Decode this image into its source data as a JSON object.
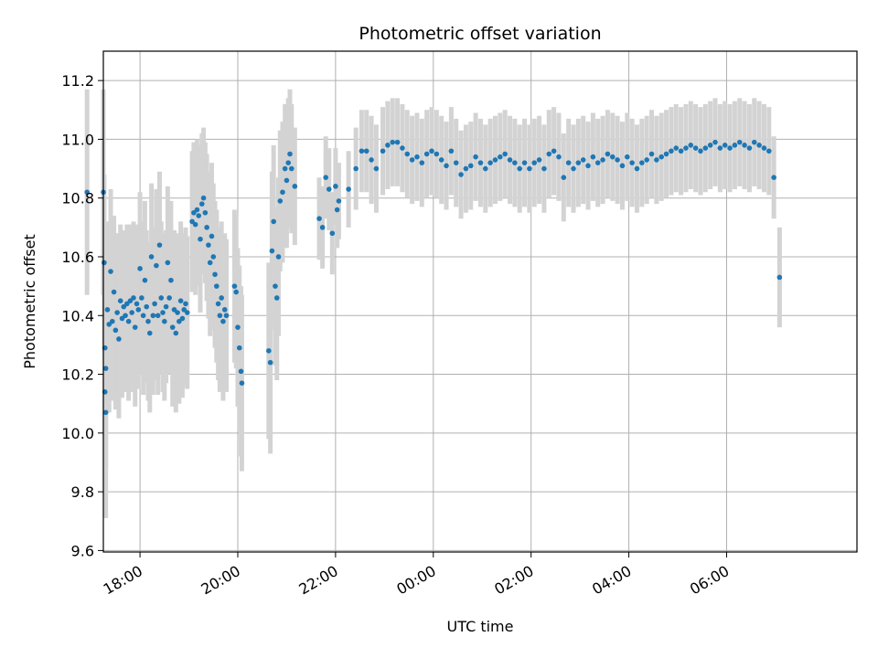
{
  "chart_data": {
    "type": "scatter",
    "title": "Photometric offset variation",
    "xlabel": "UTC time",
    "ylabel": "Photometric offset",
    "grid": true,
    "xlim": [
      "17:15",
      "08:40"
    ],
    "ylim": [
      9.595,
      11.3
    ],
    "x_ticks": [
      "18:00",
      "20:00",
      "22:00",
      "00:00",
      "02:00",
      "04:00",
      "06:00"
    ],
    "y_ticks": [
      "9.6",
      "9.8",
      "10.0",
      "10.2",
      "10.4",
      "10.6",
      "10.8",
      "11.0",
      "11.2"
    ],
    "series": [
      {
        "color": "#1f77b4",
        "errorbar_color": "#d3d3d3",
        "points": [
          [
            "16:55",
            10.82,
            0.35
          ],
          [
            "17:15",
            10.82,
            0.35
          ],
          [
            "17:16",
            10.58,
            0.3
          ],
          [
            "17:17",
            10.29,
            0.3
          ],
          [
            "17:17",
            10.14,
            0.35
          ],
          [
            "17:18",
            10.07,
            0.36
          ],
          [
            "17:18",
            10.22,
            0.34
          ],
          [
            "17:20",
            10.42,
            0.3
          ],
          [
            "17:22",
            10.37,
            0.3
          ],
          [
            "17:24",
            10.55,
            0.28
          ],
          [
            "17:26",
            10.38,
            0.27
          ],
          [
            "17:28",
            10.48,
            0.26
          ],
          [
            "17:30",
            10.35,
            0.27
          ],
          [
            "17:32",
            10.41,
            0.27
          ],
          [
            "17:34",
            10.32,
            0.27
          ],
          [
            "17:36",
            10.45,
            0.26
          ],
          [
            "17:38",
            10.39,
            0.27
          ],
          [
            "17:40",
            10.43,
            0.26
          ],
          [
            "17:42",
            10.4,
            0.26
          ],
          [
            "17:44",
            10.44,
            0.27
          ],
          [
            "17:46",
            10.38,
            0.27
          ],
          [
            "17:48",
            10.45,
            0.26
          ],
          [
            "17:50",
            10.41,
            0.27
          ],
          [
            "17:52",
            10.46,
            0.26
          ],
          [
            "17:54",
            10.36,
            0.27
          ],
          [
            "17:56",
            10.44,
            0.27
          ],
          [
            "17:58",
            10.42,
            0.27
          ],
          [
            "18:00",
            10.56,
            0.26
          ],
          [
            "18:02",
            10.46,
            0.26
          ],
          [
            "18:04",
            10.4,
            0.27
          ],
          [
            "18:06",
            10.52,
            0.27
          ],
          [
            "18:08",
            10.43,
            0.26
          ],
          [
            "18:10",
            10.38,
            0.27
          ],
          [
            "18:12",
            10.34,
            0.27
          ],
          [
            "18:14",
            10.6,
            0.25
          ],
          [
            "18:16",
            10.4,
            0.27
          ],
          [
            "18:18",
            10.44,
            0.26
          ],
          [
            "18:20",
            10.57,
            0.26
          ],
          [
            "18:22",
            10.4,
            0.27
          ],
          [
            "18:24",
            10.64,
            0.25
          ],
          [
            "18:26",
            10.46,
            0.26
          ],
          [
            "18:28",
            10.41,
            0.27
          ],
          [
            "18:30",
            10.38,
            0.27
          ],
          [
            "18:32",
            10.43,
            0.26
          ],
          [
            "18:34",
            10.58,
            0.26
          ],
          [
            "18:36",
            10.46,
            0.26
          ],
          [
            "18:38",
            10.52,
            0.27
          ],
          [
            "18:40",
            10.36,
            0.27
          ],
          [
            "18:42",
            10.42,
            0.27
          ],
          [
            "18:44",
            10.34,
            0.27
          ],
          [
            "18:46",
            10.41,
            0.27
          ],
          [
            "18:48",
            10.38,
            0.28
          ],
          [
            "18:50",
            10.45,
            0.27
          ],
          [
            "18:52",
            10.39,
            0.27
          ],
          [
            "18:54",
            10.42,
            0.26
          ],
          [
            "18:56",
            10.44,
            0.26
          ],
          [
            "18:58",
            10.41,
            0.26
          ],
          [
            "19:04",
            10.72,
            0.24
          ],
          [
            "19:06",
            10.75,
            0.24
          ],
          [
            "19:08",
            10.71,
            0.24
          ],
          [
            "19:10",
            10.76,
            0.24
          ],
          [
            "19:12",
            10.74,
            0.24
          ],
          [
            "19:14",
            10.66,
            0.25
          ],
          [
            "19:16",
            10.78,
            0.24
          ],
          [
            "19:18",
            10.8,
            0.24
          ],
          [
            "19:20",
            10.75,
            0.24
          ],
          [
            "19:22",
            10.7,
            0.25
          ],
          [
            "19:24",
            10.64,
            0.25
          ],
          [
            "19:26",
            10.58,
            0.25
          ],
          [
            "19:28",
            10.67,
            0.25
          ],
          [
            "19:30",
            10.6,
            0.25
          ],
          [
            "19:32",
            10.54,
            0.25
          ],
          [
            "19:34",
            10.5,
            0.26
          ],
          [
            "19:36",
            10.44,
            0.26
          ],
          [
            "19:38",
            10.4,
            0.26
          ],
          [
            "19:40",
            10.46,
            0.26
          ],
          [
            "19:42",
            10.38,
            0.27
          ],
          [
            "19:44",
            10.42,
            0.26
          ],
          [
            "19:46",
            10.4,
            0.26
          ],
          [
            "19:56",
            10.5,
            0.26
          ],
          [
            "19:58",
            10.48,
            0.26
          ],
          [
            "20:00",
            10.36,
            0.27
          ],
          [
            "20:02",
            10.29,
            0.28
          ],
          [
            "20:04",
            10.21,
            0.29
          ],
          [
            "20:05",
            10.17,
            0.3
          ],
          [
            "20:38",
            10.28,
            0.3
          ],
          [
            "20:40",
            10.24,
            0.31
          ],
          [
            "20:42",
            10.62,
            0.27
          ],
          [
            "20:44",
            10.72,
            0.26
          ],
          [
            "20:46",
            10.5,
            0.27
          ],
          [
            "20:48",
            10.46,
            0.28
          ],
          [
            "20:50",
            10.6,
            0.27
          ],
          [
            "20:52",
            10.79,
            0.24
          ],
          [
            "20:55",
            10.82,
            0.24
          ],
          [
            "20:58",
            10.9,
            0.22
          ],
          [
            "21:00",
            10.86,
            0.23
          ],
          [
            "21:02",
            10.92,
            0.22
          ],
          [
            "21:04",
            10.95,
            0.22
          ],
          [
            "21:06",
            10.9,
            0.22
          ],
          [
            "21:10",
            10.84,
            0.2
          ],
          [
            "21:40",
            10.73,
            0.14
          ],
          [
            "21:44",
            10.7,
            0.14
          ],
          [
            "21:48",
            10.87,
            0.14
          ],
          [
            "21:52",
            10.83,
            0.14
          ],
          [
            "21:56",
            10.68,
            0.14
          ],
          [
            "22:00",
            10.84,
            0.13
          ],
          [
            "22:02",
            10.76,
            0.13
          ],
          [
            "22:04",
            10.79,
            0.13
          ],
          [
            "22:16",
            10.83,
            0.13
          ],
          [
            "22:25",
            10.9,
            0.14
          ],
          [
            "22:32",
            10.96,
            0.14
          ],
          [
            "22:38",
            10.96,
            0.14
          ],
          [
            "22:44",
            10.93,
            0.15
          ],
          [
            "22:50",
            10.9,
            0.15
          ],
          [
            "22:58",
            10.96,
            0.15
          ],
          [
            "23:04",
            10.98,
            0.15
          ],
          [
            "23:10",
            10.99,
            0.15
          ],
          [
            "23:16",
            10.99,
            0.15
          ],
          [
            "23:22",
            10.97,
            0.15
          ],
          [
            "23:28",
            10.95,
            0.15
          ],
          [
            "23:34",
            10.93,
            0.15
          ],
          [
            "23:40",
            10.94,
            0.15
          ],
          [
            "23:46",
            10.92,
            0.15
          ],
          [
            "23:52",
            10.95,
            0.15
          ],
          [
            "23:58",
            10.96,
            0.15
          ],
          [
            "00:04",
            10.95,
            0.15
          ],
          [
            "00:10",
            10.93,
            0.15
          ],
          [
            "00:16",
            10.91,
            0.15
          ],
          [
            "00:22",
            10.96,
            0.15
          ],
          [
            "00:28",
            10.92,
            0.15
          ],
          [
            "00:34",
            10.88,
            0.15
          ],
          [
            "00:40",
            10.9,
            0.15
          ],
          [
            "00:46",
            10.91,
            0.15
          ],
          [
            "00:52",
            10.94,
            0.15
          ],
          [
            "00:58",
            10.92,
            0.15
          ],
          [
            "01:04",
            10.9,
            0.15
          ],
          [
            "01:10",
            10.92,
            0.15
          ],
          [
            "01:16",
            10.93,
            0.15
          ],
          [
            "01:22",
            10.94,
            0.15
          ],
          [
            "01:28",
            10.95,
            0.15
          ],
          [
            "01:34",
            10.93,
            0.15
          ],
          [
            "01:40",
            10.92,
            0.15
          ],
          [
            "01:46",
            10.9,
            0.15
          ],
          [
            "01:52",
            10.92,
            0.15
          ],
          [
            "01:58",
            10.9,
            0.15
          ],
          [
            "02:04",
            10.92,
            0.15
          ],
          [
            "02:10",
            10.93,
            0.15
          ],
          [
            "02:16",
            10.9,
            0.15
          ],
          [
            "02:22",
            10.95,
            0.15
          ],
          [
            "02:28",
            10.96,
            0.15
          ],
          [
            "02:34",
            10.94,
            0.15
          ],
          [
            "02:40",
            10.87,
            0.15
          ],
          [
            "02:46",
            10.92,
            0.15
          ],
          [
            "02:52",
            10.9,
            0.15
          ],
          [
            "02:58",
            10.92,
            0.15
          ],
          [
            "03:04",
            10.93,
            0.15
          ],
          [
            "03:10",
            10.91,
            0.15
          ],
          [
            "03:16",
            10.94,
            0.15
          ],
          [
            "03:22",
            10.92,
            0.15
          ],
          [
            "03:28",
            10.93,
            0.15
          ],
          [
            "03:34",
            10.95,
            0.15
          ],
          [
            "03:40",
            10.94,
            0.15
          ],
          [
            "03:46",
            10.93,
            0.15
          ],
          [
            "03:52",
            10.91,
            0.15
          ],
          [
            "03:58",
            10.94,
            0.15
          ],
          [
            "04:04",
            10.92,
            0.15
          ],
          [
            "04:10",
            10.9,
            0.15
          ],
          [
            "04:16",
            10.92,
            0.15
          ],
          [
            "04:22",
            10.93,
            0.15
          ],
          [
            "04:28",
            10.95,
            0.15
          ],
          [
            "04:34",
            10.93,
            0.15
          ],
          [
            "04:40",
            10.94,
            0.15
          ],
          [
            "04:46",
            10.95,
            0.15
          ],
          [
            "04:52",
            10.96,
            0.15
          ],
          [
            "04:58",
            10.97,
            0.15
          ],
          [
            "05:04",
            10.96,
            0.15
          ],
          [
            "05:10",
            10.97,
            0.15
          ],
          [
            "05:16",
            10.98,
            0.15
          ],
          [
            "05:22",
            10.97,
            0.15
          ],
          [
            "05:28",
            10.96,
            0.15
          ],
          [
            "05:34",
            10.97,
            0.15
          ],
          [
            "05:40",
            10.98,
            0.15
          ],
          [
            "05:46",
            10.99,
            0.15
          ],
          [
            "05:52",
            10.97,
            0.15
          ],
          [
            "05:58",
            10.98,
            0.15
          ],
          [
            "06:04",
            10.97,
            0.15
          ],
          [
            "06:10",
            10.98,
            0.15
          ],
          [
            "06:16",
            10.99,
            0.15
          ],
          [
            "06:22",
            10.98,
            0.15
          ],
          [
            "06:28",
            10.97,
            0.15
          ],
          [
            "06:34",
            10.99,
            0.15
          ],
          [
            "06:40",
            10.98,
            0.15
          ],
          [
            "06:46",
            10.97,
            0.15
          ],
          [
            "06:52",
            10.96,
            0.15
          ],
          [
            "06:58",
            10.87,
            0.14
          ],
          [
            "07:05",
            10.53,
            0.17
          ]
        ]
      }
    ]
  }
}
